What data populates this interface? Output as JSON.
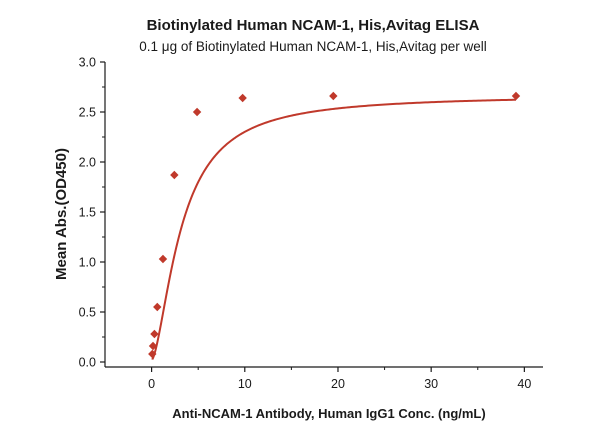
{
  "chart_data": {
    "type": "scatter",
    "title": "Biotinylated Human NCAM-1, His,Avitag ELISA",
    "subtitle": "0.1 μg of Biotinylated Human NCAM-1, His,Avitag per well",
    "xlabel": "Anti-NCAM-1 Antibody, Human IgG1 Conc. (ng/mL)",
    "ylabel": "Mean Abs.(OD450)",
    "xlim": [
      -5,
      42
    ],
    "ylim": [
      -0.05,
      3.0
    ],
    "x_ticks": [
      "0",
      "10",
      "20",
      "30",
      "40"
    ],
    "y_ticks": [
      "0.0",
      "0.5",
      "1.0",
      "1.5",
      "2.0",
      "2.5",
      "3.0"
    ],
    "grid": false,
    "colors": {
      "marker": "#c0392b",
      "curve": "#c0392b",
      "axis": "#1a1a1a"
    },
    "series": [
      {
        "x": [
          0.0763,
          0.153,
          0.305,
          0.61,
          1.22,
          2.44,
          4.88,
          9.77,
          19.5,
          39.1
        ],
        "y": [
          0.08,
          0.16,
          0.28,
          0.55,
          1.03,
          1.87,
          2.5,
          2.64,
          2.66,
          2.66
        ]
      }
    ],
    "fit_curve": {
      "model": "4PL",
      "bottom": 0.02,
      "top": 2.67,
      "ec50": 3.2,
      "hill": 1.6
    }
  }
}
